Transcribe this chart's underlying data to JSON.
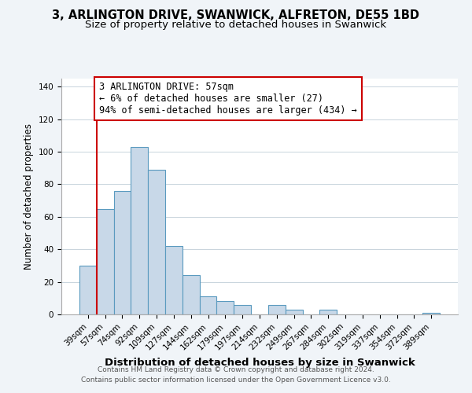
{
  "title_line1": "3, ARLINGTON DRIVE, SWANWICK, ALFRETON, DE55 1BD",
  "title_line2": "Size of property relative to detached houses in Swanwick",
  "xlabel": "Distribution of detached houses by size in Swanwick",
  "ylabel": "Number of detached properties",
  "bar_labels": [
    "39sqm",
    "57sqm",
    "74sqm",
    "92sqm",
    "109sqm",
    "127sqm",
    "144sqm",
    "162sqm",
    "179sqm",
    "197sqm",
    "214sqm",
    "232sqm",
    "249sqm",
    "267sqm",
    "284sqm",
    "302sqm",
    "319sqm",
    "337sqm",
    "354sqm",
    "372sqm",
    "389sqm"
  ],
  "bar_values": [
    30,
    65,
    76,
    103,
    89,
    42,
    24,
    11,
    8,
    6,
    0,
    6,
    3,
    0,
    3,
    0,
    0,
    0,
    0,
    0,
    1
  ],
  "bar_color": "#c8d8e8",
  "bar_edge_color": "#5a9abf",
  "vline_x_index": 1,
  "vline_color": "#cc0000",
  "annotation_text": "3 ARLINGTON DRIVE: 57sqm\n← 6% of detached houses are smaller (27)\n94% of semi-detached houses are larger (434) →",
  "annotation_box_edgecolor": "#cc0000",
  "annotation_box_facecolor": "#ffffff",
  "ylim": [
    0,
    145
  ],
  "yticks": [
    0,
    20,
    40,
    60,
    80,
    100,
    120,
    140
  ],
  "footer_line1": "Contains HM Land Registry data © Crown copyright and database right 2024.",
  "footer_line2": "Contains public sector information licensed under the Open Government Licence v3.0.",
  "bg_color": "#f0f4f8",
  "plot_bg_color": "#ffffff",
  "title_fontsize": 10.5,
  "subtitle_fontsize": 9.5,
  "xlabel_fontsize": 9.5,
  "ylabel_fontsize": 8.5,
  "tick_fontsize": 7.5,
  "annotation_fontsize": 8.5,
  "footer_fontsize": 6.5
}
